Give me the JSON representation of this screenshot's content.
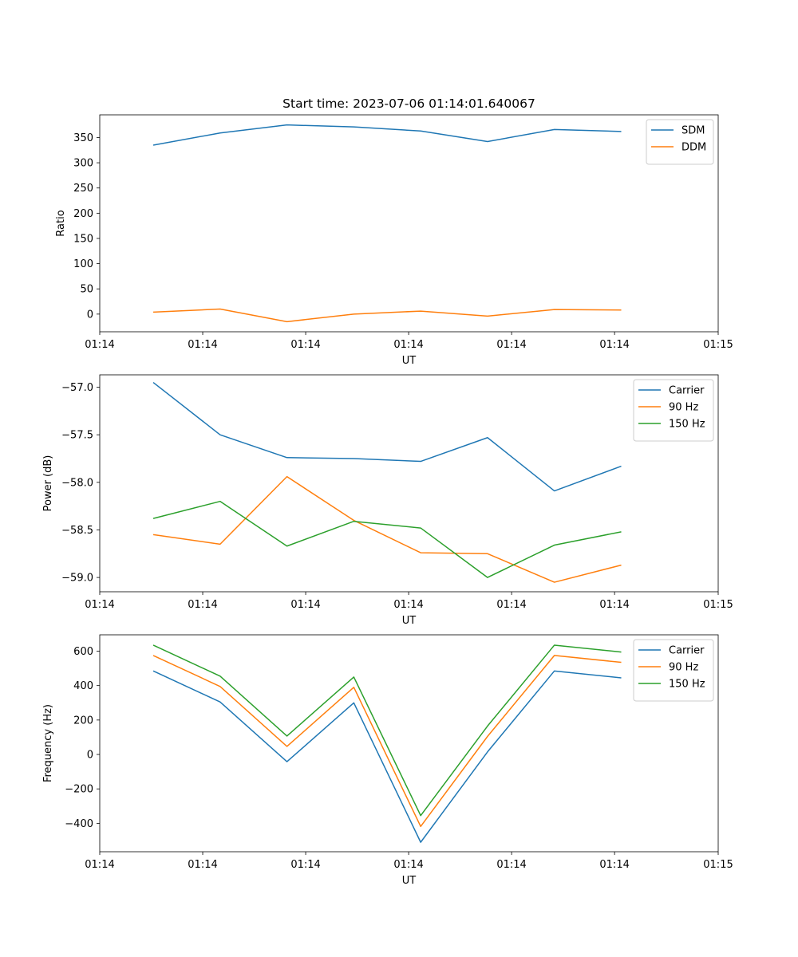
{
  "figure_title": "Start time: 2023-07-06 01:14:01.640067",
  "colors": {
    "blue": "#1f77b4",
    "orange": "#ff7f0e",
    "green": "#2ca02c",
    "axis": "#000000",
    "legend_border": "#cccccc"
  },
  "chart_data": [
    {
      "type": "line",
      "title": "Start time: 2023-07-06 01:14:01.640067",
      "xlabel": "UT",
      "ylabel": "Ratio",
      "x": [
        1,
        2,
        3,
        4,
        5,
        6,
        7,
        8
      ],
      "xlim": [
        0.2,
        9.45
      ],
      "ylim": [
        -35,
        395
      ],
      "xticks": [
        0.2,
        1.74,
        3.28,
        4.82,
        6.36,
        7.9,
        9.45
      ],
      "xtick_labels": [
        "01:14",
        "01:14",
        "01:14",
        "01:14",
        "01:14",
        "01:14",
        "01:15"
      ],
      "yticks": [
        0,
        50,
        100,
        150,
        200,
        250,
        300,
        350
      ],
      "ytick_labels": [
        "0",
        "50",
        "100",
        "150",
        "200",
        "250",
        "300",
        "350"
      ],
      "legend_position": "top-right",
      "series": [
        {
          "name": "SDM",
          "color": "#1f77b4",
          "values": [
            335,
            359,
            375,
            371,
            363,
            342,
            366,
            362
          ]
        },
        {
          "name": "DDM",
          "color": "#ff7f0e",
          "values": [
            4,
            10,
            -15,
            0,
            6,
            -4,
            9,
            8
          ]
        }
      ]
    },
    {
      "type": "line",
      "title": "",
      "xlabel": "UT",
      "ylabel": "Power (dB)",
      "x": [
        1,
        2,
        3,
        4,
        5,
        6,
        7,
        8
      ],
      "xlim": [
        0.2,
        9.45
      ],
      "ylim": [
        -59.15,
        -56.87
      ],
      "xticks": [
        0.2,
        1.74,
        3.28,
        4.82,
        6.36,
        7.9,
        9.45
      ],
      "xtick_labels": [
        "01:14",
        "01:14",
        "01:14",
        "01:14",
        "01:14",
        "01:14",
        "01:15"
      ],
      "yticks": [
        -57.0,
        -57.5,
        -58.0,
        -58.5,
        -59.0
      ],
      "ytick_labels": [
        "−57.0",
        "−57.5",
        "−58.0",
        "−58.5",
        "−59.0"
      ],
      "legend_position": "top-right",
      "series": [
        {
          "name": "Carrier",
          "color": "#1f77b4",
          "values": [
            -56.95,
            -57.5,
            -57.74,
            -57.75,
            -57.78,
            -57.53,
            -58.09,
            -57.83
          ]
        },
        {
          "name": "90 Hz",
          "color": "#ff7f0e",
          "values": [
            -58.55,
            -58.65,
            -57.94,
            -58.4,
            -58.74,
            -58.75,
            -59.05,
            -58.87
          ]
        },
        {
          "name": "150 Hz",
          "color": "#2ca02c",
          "values": [
            -58.38,
            -58.2,
            -58.67,
            -58.41,
            -58.48,
            -59.0,
            -58.66,
            -58.52
          ]
        }
      ]
    },
    {
      "type": "line",
      "title": "",
      "xlabel": "UT",
      "ylabel": "Frequency (Hz)",
      "x": [
        1,
        2,
        3,
        4,
        5,
        6,
        7,
        8
      ],
      "xlim": [
        0.2,
        9.45
      ],
      "ylim": [
        -565,
        695
      ],
      "xticks": [
        0.2,
        1.74,
        3.28,
        4.82,
        6.36,
        7.9,
        9.45
      ],
      "xtick_labels": [
        "01:14",
        "01:14",
        "01:14",
        "01:14",
        "01:14",
        "01:14",
        "01:15"
      ],
      "yticks": [
        -400,
        -200,
        0,
        200,
        400,
        600
      ],
      "ytick_labels": [
        "−400",
        "−200",
        "0",
        "200",
        "400",
        "600"
      ],
      "legend_position": "top-right",
      "series": [
        {
          "name": "Carrier",
          "color": "#1f77b4",
          "values": [
            485,
            305,
            -42,
            300,
            -510,
            15,
            485,
            445
          ]
        },
        {
          "name": "90 Hz",
          "color": "#ff7f0e",
          "values": [
            575,
            395,
            47,
            390,
            -418,
            105,
            575,
            535
          ]
        },
        {
          "name": "150 Hz",
          "color": "#2ca02c",
          "values": [
            635,
            455,
            107,
            450,
            -355,
            165,
            635,
            595
          ]
        }
      ]
    }
  ]
}
